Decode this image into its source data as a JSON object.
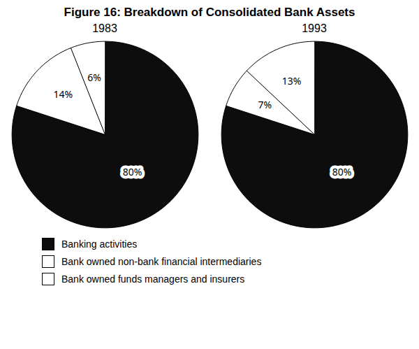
{
  "chart_data": {
    "type": "pie",
    "title": "Figure 16: Breakdown of Consolidated Bank Assets",
    "categories": [
      "Banking activities",
      "Bank owned non-bank financial intermediaries",
      "Bank owned funds managers and insurers"
    ],
    "colors": [
      "#0d0d0d",
      "#ffffff",
      "#ffffff"
    ],
    "series": [
      {
        "name": "1983",
        "values": [
          80,
          14,
          6
        ],
        "value_labels": [
          "80%",
          "14%",
          "6%"
        ]
      },
      {
        "name": "1993",
        "values": [
          80,
          7,
          13
        ],
        "value_labels": [
          "80%",
          "7%",
          "13%"
        ]
      }
    ],
    "data_labels": true,
    "legend": "bottom"
  }
}
